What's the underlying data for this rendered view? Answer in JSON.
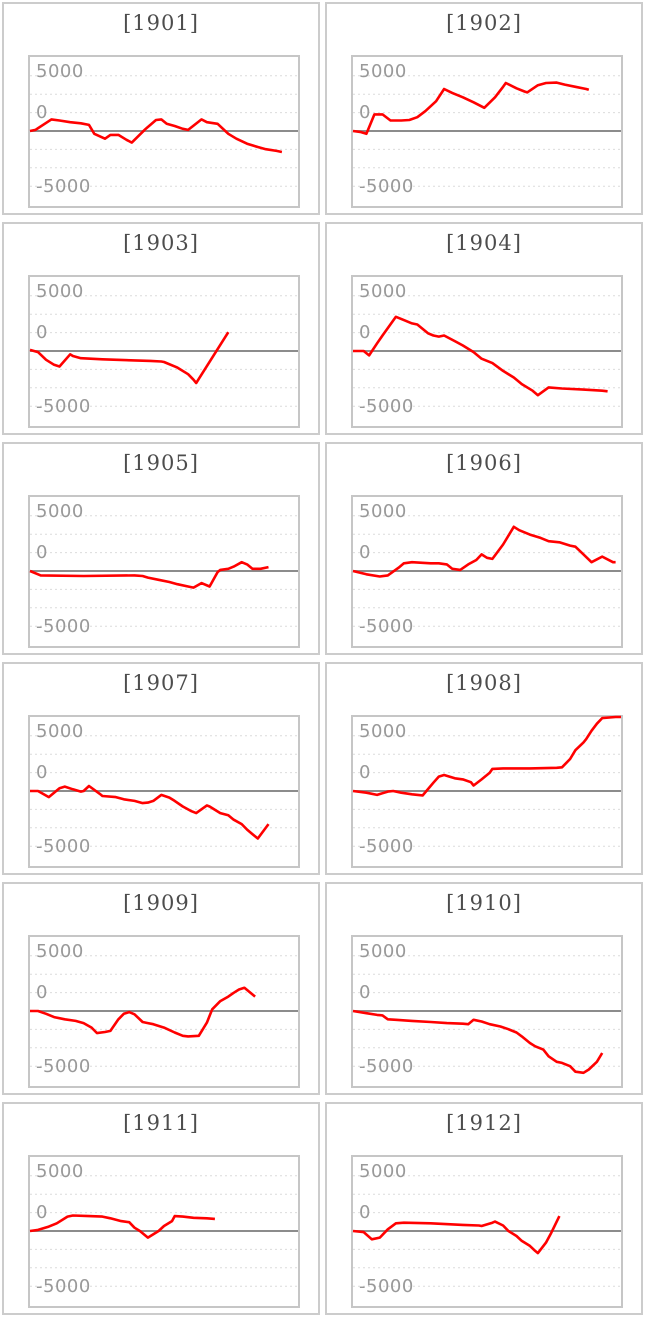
{
  "axis": {
    "y_tick_labels": [
      "5000",
      "0",
      "-5000"
    ],
    "y_tick_values": [
      5000,
      0,
      -5000
    ],
    "gridline_values": [
      5000,
      3333,
      1667,
      -1667,
      -3333,
      -5000
    ],
    "ylim": [
      -6750,
      6750
    ],
    "grid": "dotted",
    "legend": "none"
  },
  "style": {
    "series_color": "#ff0000",
    "zero_line_color": "#8c8c8c",
    "grid_color": "#dcdcdc",
    "panel_border_color": "#cccccc",
    "chart_border_color": "#c6c6c6",
    "title_color": "#4d4d4d",
    "tick_color": "#999999",
    "background": "#ffffff"
  },
  "chart_data": [
    {
      "type": "line",
      "title": "[1901]",
      "x_unit": "percent_of_plot_width",
      "points": [
        [
          0,
          0
        ],
        [
          2,
          100
        ],
        [
          8,
          1050
        ],
        [
          11,
          950
        ],
        [
          15,
          800
        ],
        [
          19,
          700
        ],
        [
          22,
          550
        ],
        [
          24,
          -250
        ],
        [
          28,
          -700
        ],
        [
          30,
          -350
        ],
        [
          33,
          -350
        ],
        [
          36,
          -800
        ],
        [
          38,
          -1050
        ],
        [
          43,
          150
        ],
        [
          47,
          1000
        ],
        [
          49,
          1050
        ],
        [
          51,
          650
        ],
        [
          54,
          450
        ],
        [
          57,
          200
        ],
        [
          59,
          100
        ],
        [
          64,
          1050
        ],
        [
          66,
          800
        ],
        [
          70,
          650
        ],
        [
          74,
          -250
        ],
        [
          77,
          -700
        ],
        [
          81,
          -1150
        ],
        [
          85,
          -1450
        ],
        [
          88,
          -1650
        ],
        [
          92,
          -1800
        ],
        [
          94,
          -1900
        ]
      ]
    },
    {
      "type": "line",
      "title": "[1902]",
      "x_unit": "percent_of_plot_width",
      "points": [
        [
          0,
          0
        ],
        [
          3,
          -100
        ],
        [
          5,
          -250
        ],
        [
          8,
          1500
        ],
        [
          11,
          1500
        ],
        [
          14,
          950
        ],
        [
          18,
          950
        ],
        [
          21,
          1000
        ],
        [
          24,
          1250
        ],
        [
          27,
          1800
        ],
        [
          31,
          2700
        ],
        [
          34,
          3800
        ],
        [
          37,
          3450
        ],
        [
          41,
          3050
        ],
        [
          45,
          2600
        ],
        [
          49,
          2100
        ],
        [
          53,
          3050
        ],
        [
          56,
          4000
        ],
        [
          57,
          4350
        ],
        [
          61,
          3870
        ],
        [
          64,
          3580
        ],
        [
          65,
          3500
        ],
        [
          69,
          4150
        ],
        [
          72,
          4350
        ],
        [
          76,
          4380
        ],
        [
          79,
          4200
        ],
        [
          83,
          4000
        ],
        [
          87,
          3800
        ],
        [
          88,
          3730
        ]
      ]
    },
    {
      "type": "line",
      "title": "[1903]",
      "x_unit": "percent_of_plot_width",
      "points": [
        [
          0,
          100
        ],
        [
          3,
          -100
        ],
        [
          6,
          -800
        ],
        [
          9,
          -1250
        ],
        [
          11,
          -1400
        ],
        [
          15,
          -300
        ],
        [
          16,
          -450
        ],
        [
          19,
          -650
        ],
        [
          27,
          -750
        ],
        [
          39,
          -850
        ],
        [
          45,
          -900
        ],
        [
          49,
          -950
        ],
        [
          50,
          -1000
        ],
        [
          55,
          -1500
        ],
        [
          59,
          -2100
        ],
        [
          61,
          -2600
        ],
        [
          62,
          -2900
        ],
        [
          74,
          1700
        ]
      ]
    },
    {
      "type": "line",
      "title": "[1904]",
      "x_unit": "percent_of_plot_width",
      "points": [
        [
          0,
          0
        ],
        [
          4,
          0
        ],
        [
          6,
          -400
        ],
        [
          9,
          700
        ],
        [
          11,
          1400
        ],
        [
          16,
          3100
        ],
        [
          19,
          2800
        ],
        [
          22,
          2500
        ],
        [
          24,
          2400
        ],
        [
          28,
          1600
        ],
        [
          30,
          1400
        ],
        [
          32,
          1300
        ],
        [
          34,
          1400
        ],
        [
          38,
          900
        ],
        [
          41,
          500
        ],
        [
          45,
          -100
        ],
        [
          48,
          -700
        ],
        [
          52,
          -1100
        ],
        [
          56,
          -1800
        ],
        [
          60,
          -2400
        ],
        [
          63,
          -3000
        ],
        [
          67,
          -3600
        ],
        [
          69,
          -4000
        ],
        [
          73,
          -3300
        ],
        [
          78,
          -3400
        ],
        [
          86,
          -3500
        ],
        [
          93,
          -3600
        ],
        [
          95,
          -3650
        ]
      ]
    },
    {
      "type": "line",
      "title": "[1905]",
      "x_unit": "percent_of_plot_width",
      "points": [
        [
          0,
          0
        ],
        [
          3,
          -300
        ],
        [
          4,
          -400
        ],
        [
          20,
          -450
        ],
        [
          39,
          -400
        ],
        [
          42,
          -450
        ],
        [
          44,
          -600
        ],
        [
          48,
          -800
        ],
        [
          52,
          -1000
        ],
        [
          55,
          -1200
        ],
        [
          59,
          -1400
        ],
        [
          61,
          -1500
        ],
        [
          64,
          -1100
        ],
        [
          67,
          -1400
        ],
        [
          70,
          -100
        ],
        [
          71,
          100
        ],
        [
          74,
          200
        ],
        [
          76,
          400
        ],
        [
          79,
          800
        ],
        [
          81,
          600
        ],
        [
          83,
          200
        ],
        [
          86,
          200
        ],
        [
          89,
          350
        ]
      ]
    },
    {
      "type": "line",
      "title": "[1906]",
      "x_unit": "percent_of_plot_width",
      "points": [
        [
          0,
          0
        ],
        [
          5,
          -300
        ],
        [
          10,
          -500
        ],
        [
          13,
          -400
        ],
        [
          17,
          300
        ],
        [
          19,
          700
        ],
        [
          22,
          800
        ],
        [
          29,
          700
        ],
        [
          32,
          700
        ],
        [
          35,
          600
        ],
        [
          37,
          200
        ],
        [
          40,
          100
        ],
        [
          43,
          600
        ],
        [
          46,
          1000
        ],
        [
          48,
          1500
        ],
        [
          50,
          1200
        ],
        [
          52,
          1100
        ],
        [
          56,
          2400
        ],
        [
          60,
          4000
        ],
        [
          62,
          3700
        ],
        [
          66,
          3300
        ],
        [
          70,
          3000
        ],
        [
          73,
          2700
        ],
        [
          77,
          2600
        ],
        [
          81,
          2300
        ],
        [
          83,
          2200
        ],
        [
          86,
          1500
        ],
        [
          89,
          800
        ],
        [
          93,
          1300
        ],
        [
          97,
          800
        ],
        [
          98,
          800
        ]
      ]
    },
    {
      "type": "line",
      "title": "[1907]",
      "x_unit": "percent_of_plot_width",
      "points": [
        [
          0,
          0
        ],
        [
          3,
          0
        ],
        [
          7,
          -550
        ],
        [
          11,
          250
        ],
        [
          13,
          400
        ],
        [
          16,
          150
        ],
        [
          19,
          -50
        ],
        [
          20,
          0
        ],
        [
          22,
          450
        ],
        [
          26,
          -250
        ],
        [
          27,
          -450
        ],
        [
          32,
          -550
        ],
        [
          35,
          -750
        ],
        [
          39,
          -900
        ],
        [
          42,
          -1100
        ],
        [
          44,
          -1050
        ],
        [
          46,
          -900
        ],
        [
          49,
          -350
        ],
        [
          52,
          -600
        ],
        [
          54,
          -900
        ],
        [
          57,
          -1400
        ],
        [
          60,
          -1800
        ],
        [
          62,
          -2000
        ],
        [
          66,
          -1300
        ],
        [
          67,
          -1400
        ],
        [
          71,
          -2000
        ],
        [
          74,
          -2200
        ],
        [
          76,
          -2600
        ],
        [
          79,
          -3000
        ],
        [
          81,
          -3500
        ],
        [
          83,
          -3900
        ],
        [
          85,
          -4300
        ],
        [
          89,
          -3000
        ]
      ]
    },
    {
      "type": "line",
      "title": "[1908]",
      "x_unit": "percent_of_plot_width",
      "points": [
        [
          0,
          0
        ],
        [
          5,
          -150
        ],
        [
          9,
          -350
        ],
        [
          13,
          -50
        ],
        [
          15,
          0
        ],
        [
          18,
          -150
        ],
        [
          22,
          -300
        ],
        [
          26,
          -400
        ],
        [
          30,
          750
        ],
        [
          32,
          1300
        ],
        [
          34,
          1450
        ],
        [
          38,
          1150
        ],
        [
          41,
          1050
        ],
        [
          44,
          800
        ],
        [
          45,
          500
        ],
        [
          48,
          1050
        ],
        [
          51,
          1650
        ],
        [
          52,
          2000
        ],
        [
          56,
          2050
        ],
        [
          66,
          2050
        ],
        [
          76,
          2100
        ],
        [
          78,
          2150
        ],
        [
          81,
          2900
        ],
        [
          83,
          3700
        ],
        [
          86,
          4400
        ],
        [
          87,
          4700
        ],
        [
          89,
          5450
        ],
        [
          91,
          6100
        ],
        [
          93,
          6600
        ],
        [
          98,
          6700
        ],
        [
          100,
          6700
        ]
      ]
    },
    {
      "type": "line",
      "title": "[1909]",
      "x_unit": "percent_of_plot_width",
      "points": [
        [
          0,
          0
        ],
        [
          3,
          0
        ],
        [
          6,
          -250
        ],
        [
          9,
          -550
        ],
        [
          13,
          -750
        ],
        [
          17,
          -900
        ],
        [
          20,
          -1100
        ],
        [
          23,
          -1500
        ],
        [
          25,
          -2000
        ],
        [
          28,
          -1900
        ],
        [
          30,
          -1800
        ],
        [
          33,
          -750
        ],
        [
          35,
          -250
        ],
        [
          37,
          -100
        ],
        [
          39,
          -300
        ],
        [
          42,
          -1000
        ],
        [
          44,
          -1100
        ],
        [
          46,
          -1200
        ],
        [
          50,
          -1500
        ],
        [
          54,
          -1950
        ],
        [
          57,
          -2250
        ],
        [
          59,
          -2300
        ],
        [
          63,
          -2250
        ],
        [
          66,
          -1050
        ],
        [
          68,
          150
        ],
        [
          71,
          900
        ],
        [
          74,
          1300
        ],
        [
          76,
          1650
        ],
        [
          78,
          1950
        ],
        [
          80,
          2100
        ],
        [
          83,
          1500
        ],
        [
          84,
          1300
        ]
      ]
    },
    {
      "type": "line",
      "title": "[1910]",
      "x_unit": "percent_of_plot_width",
      "points": [
        [
          0,
          0
        ],
        [
          5,
          -200
        ],
        [
          9,
          -350
        ],
        [
          11,
          -400
        ],
        [
          13,
          -750
        ],
        [
          16,
          -800
        ],
        [
          22,
          -900
        ],
        [
          29,
          -1000
        ],
        [
          35,
          -1100
        ],
        [
          41,
          -1150
        ],
        [
          43,
          -1200
        ],
        [
          45,
          -800
        ],
        [
          48,
          -950
        ],
        [
          51,
          -1200
        ],
        [
          55,
          -1400
        ],
        [
          58,
          -1650
        ],
        [
          61,
          -1950
        ],
        [
          63,
          -2300
        ],
        [
          66,
          -2900
        ],
        [
          68,
          -3200
        ],
        [
          71,
          -3500
        ],
        [
          73,
          -4100
        ],
        [
          76,
          -4600
        ],
        [
          78,
          -4700
        ],
        [
          81,
          -5000
        ],
        [
          83,
          -5500
        ],
        [
          86,
          -5600
        ],
        [
          88,
          -5300
        ],
        [
          91,
          -4600
        ],
        [
          93,
          -3800
        ]
      ]
    },
    {
      "type": "line",
      "title": "[1911]",
      "x_unit": "percent_of_plot_width",
      "points": [
        [
          0,
          0
        ],
        [
          3,
          100
        ],
        [
          7,
          400
        ],
        [
          10,
          700
        ],
        [
          14,
          1300
        ],
        [
          16,
          1400
        ],
        [
          22,
          1350
        ],
        [
          27,
          1300
        ],
        [
          30,
          1150
        ],
        [
          34,
          900
        ],
        [
          37,
          800
        ],
        [
          39,
          300
        ],
        [
          41,
          0
        ],
        [
          44,
          -600
        ],
        [
          48,
          0
        ],
        [
          50,
          450
        ],
        [
          53,
          900
        ],
        [
          54,
          1350
        ],
        [
          57,
          1300
        ],
        [
          61,
          1200
        ],
        [
          66,
          1150
        ],
        [
          69,
          1100
        ]
      ]
    },
    {
      "type": "line",
      "title": "[1912]",
      "x_unit": "percent_of_plot_width",
      "points": [
        [
          0,
          0
        ],
        [
          4,
          -100
        ],
        [
          7,
          -750
        ],
        [
          10,
          -600
        ],
        [
          13,
          150
        ],
        [
          16,
          700
        ],
        [
          19,
          750
        ],
        [
          29,
          700
        ],
        [
          41,
          550
        ],
        [
          47,
          500
        ],
        [
          48,
          450
        ],
        [
          52,
          750
        ],
        [
          53,
          850
        ],
        [
          56,
          500
        ],
        [
          58,
          0
        ],
        [
          61,
          -450
        ],
        [
          63,
          -900
        ],
        [
          66,
          -1350
        ],
        [
          68,
          -1800
        ],
        [
          69,
          -2000
        ],
        [
          72,
          -1050
        ],
        [
          74,
          -150
        ],
        [
          77,
          1350
        ]
      ]
    }
  ]
}
